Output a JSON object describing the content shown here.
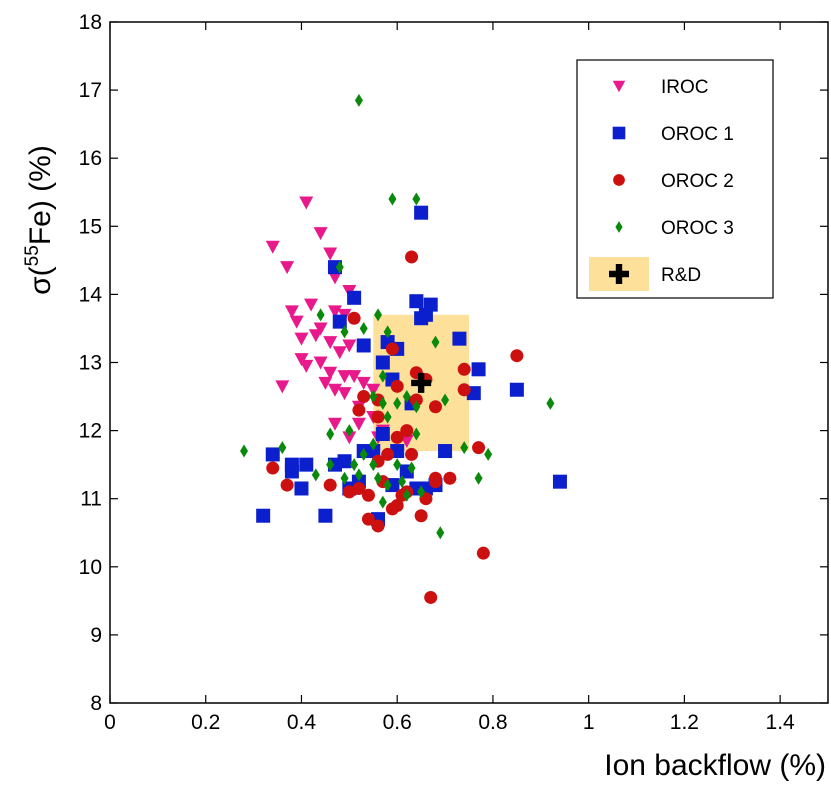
{
  "chart_data": {
    "type": "scatter",
    "xlabel": "Ion backflow (%)",
    "ylabel": {
      "prefix": "σ(",
      "sup": "55",
      "suffix": "Fe) (%)"
    },
    "xlim": [
      0,
      1.5
    ],
    "ylim": [
      8,
      18
    ],
    "xticks": [
      "0",
      "0.2",
      "0.4",
      "0.6",
      "0.8",
      "1",
      "1.2",
      "1.4"
    ],
    "yticks": [
      "8",
      "9",
      "10",
      "11",
      "12",
      "13",
      "14",
      "15",
      "16",
      "17",
      "18"
    ],
    "grid": false,
    "legend_position": "top-right",
    "rd_box": {
      "x": [
        0.55,
        0.75
      ],
      "y": [
        11.7,
        13.7
      ],
      "color": "#fde19a"
    },
    "rd_point": {
      "x": 0.65,
      "y": 12.7
    },
    "series": [
      {
        "name": "IROC",
        "marker": "triangle-down",
        "color": "#e8198b",
        "points": [
          [
            0.34,
            14.7
          ],
          [
            0.37,
            14.4
          ],
          [
            0.41,
            15.35
          ],
          [
            0.44,
            14.9
          ],
          [
            0.46,
            14.6
          ],
          [
            0.47,
            14.25
          ],
          [
            0.38,
            13.75
          ],
          [
            0.39,
            13.6
          ],
          [
            0.42,
            13.85
          ],
          [
            0.44,
            13.5
          ],
          [
            0.47,
            13.75
          ],
          [
            0.49,
            13.7
          ],
          [
            0.4,
            13.35
          ],
          [
            0.43,
            13.4
          ],
          [
            0.46,
            13.3
          ],
          [
            0.48,
            13.15
          ],
          [
            0.5,
            13.25
          ],
          [
            0.5,
            14.05
          ],
          [
            0.4,
            13.05
          ],
          [
            0.41,
            12.95
          ],
          [
            0.44,
            13.0
          ],
          [
            0.46,
            12.85
          ],
          [
            0.49,
            12.8
          ],
          [
            0.51,
            12.8
          ],
          [
            0.36,
            12.65
          ],
          [
            0.45,
            12.7
          ],
          [
            0.47,
            12.6
          ],
          [
            0.49,
            12.55
          ],
          [
            0.53,
            12.7
          ],
          [
            0.55,
            12.6
          ],
          [
            0.52,
            12.35
          ],
          [
            0.55,
            12.2
          ],
          [
            0.47,
            12.1
          ],
          [
            0.52,
            12.1
          ],
          [
            0.56,
            11.9
          ],
          [
            0.5,
            11.9
          ],
          [
            0.57,
            12.0
          ],
          [
            0.62,
            11.85
          ]
        ]
      },
      {
        "name": "OROC 1",
        "marker": "square",
        "color": "#0b1fcc",
        "points": [
          [
            0.32,
            10.75
          ],
          [
            0.34,
            11.65
          ],
          [
            0.38,
            11.4
          ],
          [
            0.38,
            11.5
          ],
          [
            0.4,
            11.15
          ],
          [
            0.41,
            11.5
          ],
          [
            0.45,
            10.75
          ],
          [
            0.47,
            11.5
          ],
          [
            0.49,
            11.55
          ],
          [
            0.5,
            11.15
          ],
          [
            0.52,
            11.25
          ],
          [
            0.53,
            11.7
          ],
          [
            0.55,
            11.7
          ],
          [
            0.56,
            10.7
          ],
          [
            0.57,
            11.95
          ],
          [
            0.59,
            11.2
          ],
          [
            0.6,
            11.7
          ],
          [
            0.62,
            11.4
          ],
          [
            0.64,
            11.15
          ],
          [
            0.66,
            11.15
          ],
          [
            0.68,
            11.2
          ],
          [
            0.7,
            11.7
          ],
          [
            0.47,
            14.4
          ],
          [
            0.48,
            13.6
          ],
          [
            0.51,
            13.95
          ],
          [
            0.53,
            13.25
          ],
          [
            0.57,
            13.0
          ],
          [
            0.58,
            13.3
          ],
          [
            0.6,
            13.2
          ],
          [
            0.59,
            12.75
          ],
          [
            0.63,
            12.4
          ],
          [
            0.64,
            13.9
          ],
          [
            0.65,
            13.65
          ],
          [
            0.66,
            13.7
          ],
          [
            0.67,
            13.85
          ],
          [
            0.73,
            13.35
          ],
          [
            0.77,
            12.9
          ],
          [
            0.76,
            12.55
          ],
          [
            0.65,
            15.2
          ],
          [
            0.85,
            12.6
          ],
          [
            0.94,
            11.25
          ]
        ]
      },
      {
        "name": "OROC 2",
        "marker": "circle",
        "color": "#cc1010",
        "points": [
          [
            0.34,
            11.45
          ],
          [
            0.37,
            11.2
          ],
          [
            0.46,
            11.2
          ],
          [
            0.5,
            11.1
          ],
          [
            0.52,
            11.15
          ],
          [
            0.54,
            11.05
          ],
          [
            0.54,
            10.7
          ],
          [
            0.56,
            10.6
          ],
          [
            0.57,
            11.25
          ],
          [
            0.59,
            10.85
          ],
          [
            0.6,
            10.9
          ],
          [
            0.61,
            11.05
          ],
          [
            0.62,
            11.1
          ],
          [
            0.65,
            10.75
          ],
          [
            0.66,
            11.0
          ],
          [
            0.68,
            11.3
          ],
          [
            0.68,
            11.25
          ],
          [
            0.71,
            11.3
          ],
          [
            0.52,
            12.3
          ],
          [
            0.53,
            12.5
          ],
          [
            0.56,
            12.2
          ],
          [
            0.56,
            12.45
          ],
          [
            0.58,
            11.65
          ],
          [
            0.6,
            11.9
          ],
          [
            0.62,
            12.0
          ],
          [
            0.63,
            11.65
          ],
          [
            0.64,
            12.45
          ],
          [
            0.64,
            12.85
          ],
          [
            0.66,
            12.75
          ],
          [
            0.68,
            12.35
          ],
          [
            0.59,
            13.2
          ],
          [
            0.6,
            12.65
          ],
          [
            0.51,
            13.65
          ],
          [
            0.63,
            14.55
          ],
          [
            0.74,
            12.9
          ],
          [
            0.74,
            12.6
          ],
          [
            0.77,
            11.75
          ],
          [
            0.85,
            13.1
          ],
          [
            0.78,
            10.2
          ],
          [
            0.67,
            9.55
          ],
          [
            0.56,
            11.55
          ]
        ]
      },
      {
        "name": "OROC 3",
        "marker": "diamond",
        "color": "#0a8a0a",
        "points": [
          [
            0.28,
            11.7
          ],
          [
            0.36,
            11.75
          ],
          [
            0.43,
            11.35
          ],
          [
            0.46,
            11.5
          ],
          [
            0.46,
            11.95
          ],
          [
            0.49,
            11.3
          ],
          [
            0.51,
            11.5
          ],
          [
            0.52,
            11.35
          ],
          [
            0.53,
            11.65
          ],
          [
            0.55,
            11.8
          ],
          [
            0.56,
            11.3
          ],
          [
            0.57,
            10.95
          ],
          [
            0.58,
            11.2
          ],
          [
            0.6,
            11.5
          ],
          [
            0.61,
            11.25
          ],
          [
            0.62,
            11.05
          ],
          [
            0.63,
            11.45
          ],
          [
            0.65,
            11.1
          ],
          [
            0.69,
            10.5
          ],
          [
            0.74,
            11.75
          ],
          [
            0.77,
            11.3
          ],
          [
            0.79,
            11.65
          ],
          [
            0.48,
            14.4
          ],
          [
            0.44,
            13.7
          ],
          [
            0.49,
            13.45
          ],
          [
            0.53,
            13.5
          ],
          [
            0.56,
            13.7
          ],
          [
            0.58,
            13.45
          ],
          [
            0.55,
            12.5
          ],
          [
            0.57,
            12.8
          ],
          [
            0.58,
            12.2
          ],
          [
            0.6,
            12.4
          ],
          [
            0.62,
            12.5
          ],
          [
            0.64,
            12.35
          ],
          [
            0.68,
            13.3
          ],
          [
            0.7,
            12.45
          ],
          [
            0.59,
            15.4
          ],
          [
            0.64,
            15.4
          ],
          [
            0.52,
            16.85
          ],
          [
            0.92,
            12.4
          ],
          [
            0.55,
            11.5
          ],
          [
            0.64,
            11.95
          ],
          [
            0.5,
            12.0
          ],
          [
            0.57,
            12.4
          ]
        ]
      }
    ],
    "legend": [
      {
        "label": "IROC",
        "marker": "triangle-down",
        "color": "#e8198b"
      },
      {
        "label": "OROC 1",
        "marker": "square",
        "color": "#0b1fcc"
      },
      {
        "label": "OROC 2",
        "marker": "circle",
        "color": "#cc1010"
      },
      {
        "label": "OROC 3",
        "marker": "diamond",
        "color": "#0a8a0a"
      },
      {
        "label": "R&D",
        "marker": "cross-box",
        "color": "#000000"
      }
    ]
  }
}
